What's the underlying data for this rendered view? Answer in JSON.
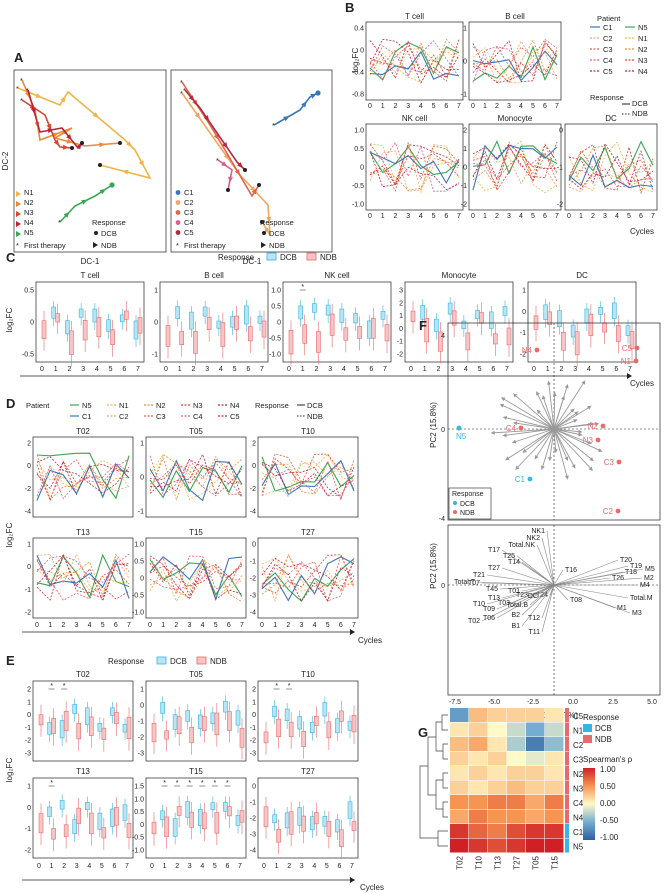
{
  "figure": {
    "panel_labels": [
      "A",
      "B",
      "C",
      "D",
      "E",
      "F",
      "G"
    ],
    "panelA": {
      "left_patients": [
        "N1",
        "N2",
        "N3",
        "N4",
        "N5"
      ],
      "right_patients": [
        "C1",
        "C2",
        "C3",
        "C4",
        "C5"
      ],
      "first_therapy": "First therapy",
      "response_title": "Response",
      "dcb": "DCB",
      "ndb": "NDB",
      "xlabel": "DC-1",
      "ylabel": "DC-2"
    },
    "panelB": {
      "titles": [
        "T cell",
        "B cell",
        "NK cell",
        "Monocyte",
        "DC"
      ],
      "ylabel": "log₂FC",
      "xlabel": "Cycles",
      "legend_title": "Patient",
      "legend_col1": [
        "C1",
        "C2",
        "C3",
        "C4",
        "C5"
      ],
      "legend_col2": [
        "N5",
        "N1",
        "N2",
        "N3",
        "N4"
      ],
      "response_title": "Response",
      "dcb": "DCB",
      "ndb": "NDB",
      "xticks": [
        "0",
        "1",
        "2",
        "3",
        "4",
        "5",
        "6",
        "7"
      ],
      "yticks_t": [
        "0.4",
        "0",
        "-0.4",
        "-0.8"
      ],
      "yticks_b": [
        "1",
        "0",
        "-1"
      ],
      "yticks_nk": [
        "1.0",
        "0.5",
        "0",
        "-0.5",
        "-1.0"
      ],
      "yticks_mono": [
        "2",
        "1",
        "0",
        "-1",
        "-2"
      ],
      "yticks_dc": [
        "0",
        "-1",
        "-2"
      ]
    },
    "panelC": {
      "response_title": "Response",
      "dcb": "DCB",
      "ndb": "NDB",
      "titles": [
        "T cell",
        "B cell",
        "NK cell",
        "Monocyte",
        "DC"
      ],
      "ylabel": "log₂FC",
      "xlabel": "Cycles",
      "xticks": [
        "0",
        "1",
        "2",
        "3",
        "4",
        "5",
        "6",
        "7"
      ],
      "yticks_t": [
        "0.5",
        "0",
        "-0.5"
      ],
      "yticks_b": [
        "1",
        "0",
        "-1"
      ],
      "yticks_nk": [
        "1.0",
        "0.5",
        "0",
        "-0.5",
        "-1.0"
      ],
      "yticks_mono": [
        "3",
        "2",
        "1",
        "0",
        "-1",
        "-2"
      ],
      "yticks_dc": [
        "1",
        "0",
        "-1",
        "-2"
      ],
      "sig": "*"
    },
    "panelD": {
      "patient_title": "Patient",
      "row1": [
        "N5",
        "N1",
        "N2",
        "N3",
        "N4"
      ],
      "row2": [
        "C1",
        "C2",
        "C3",
        "C4",
        "C5"
      ],
      "response_title": "Response",
      "dcb": "DCB",
      "ndb": "NDB",
      "titles": [
        "T02",
        "T05",
        "T10",
        "T13",
        "T15",
        "T27"
      ],
      "ylabel": "log₂FC",
      "xlabel": "Cycles",
      "xticks": [
        "0",
        "1",
        "2",
        "3",
        "4",
        "5",
        "6",
        "7"
      ],
      "yticks_t02": [
        "2",
        "0",
        "-2",
        "-4"
      ],
      "yticks_t05": [
        "1",
        "0",
        "-1"
      ],
      "yticks_t10": [
        "2",
        "0",
        "-2",
        "-4"
      ],
      "yticks_t13": [
        "1",
        "0",
        "-1",
        "-2"
      ],
      "yticks_t15": [
        "1.0",
        "0.5",
        "0",
        "-0.5",
        "-1.0"
      ],
      "yticks_t27": [
        "0",
        "-1",
        "-2",
        "-3",
        "-4"
      ]
    },
    "panelE": {
      "response_title": "Response",
      "dcb": "DCB",
      "ndb": "NDB",
      "titles": [
        "T02",
        "T05",
        "T10",
        "T13",
        "T15",
        "T27"
      ],
      "ylabel": "log₂FC",
      "xlabel": "Cycles",
      "xticks": [
        "0",
        "1",
        "2",
        "3",
        "4",
        "5",
        "6",
        "7"
      ],
      "yticks_t02": [
        "2",
        "1",
        "0",
        "-1",
        "-2",
        "-3"
      ],
      "yticks_t05": [
        "1",
        "0",
        "-1",
        "-2",
        "-3"
      ],
      "yticks_t10": [
        "2",
        "1",
        "0",
        "-1",
        "-2",
        "-3"
      ],
      "yticks_t13": [
        "1",
        "0",
        "-1",
        "-2"
      ],
      "yticks_t15": [
        "1.5",
        "1.0",
        "0.5",
        "0",
        "-0.5",
        "-1.0"
      ],
      "yticks_t27": [
        "0",
        "-1",
        "-2",
        "-3",
        "-4"
      ],
      "sig": "*"
    },
    "panelF": {
      "points": [
        {
          "label": "N4",
          "group": "NDB"
        },
        {
          "label": "C5",
          "group": "NDB"
        },
        {
          "label": "N1",
          "group": "NDB"
        },
        {
          "label": "N5",
          "group": "DCB"
        },
        {
          "label": "C4",
          "group": "NDB"
        },
        {
          "label": "N2",
          "group": "NDB"
        },
        {
          "label": "N3",
          "group": "NDB"
        },
        {
          "label": "C3",
          "group": "NDB"
        },
        {
          "label": "C1",
          "group": "DCB"
        },
        {
          "label": "C2",
          "group": "NDB"
        }
      ],
      "ylabel": "PC2 (15.8%)",
      "xlabel": "PC1 (38.7%)",
      "response_title": "Response",
      "dcb": "DCB",
      "ndb": "NDB",
      "yticks_top": [
        "4",
        "0",
        "-4"
      ],
      "yticks_bottom": [
        "0"
      ],
      "xticks": [
        "-7.5",
        "-5.0",
        "-2.5",
        "0.0",
        "2.5",
        "5.0"
      ],
      "loadings": [
        "NK1",
        "NK2",
        "Total.NK",
        "T17",
        "T25",
        "T14",
        "T27",
        "T16",
        "T21",
        "T07",
        "T45",
        "T01",
        "T23",
        "T24",
        "T13",
        "T03",
        "T08",
        "T10",
        "T09",
        "T02",
        "T06",
        "B1",
        "B2",
        "T12",
        "T11",
        "T20",
        "T19",
        "T18",
        "T26",
        "M5",
        "M2",
        "M4",
        "Total.M",
        "M1",
        "M3",
        "DC",
        "Total.T",
        "Total.B"
      ]
    },
    "panelG": {
      "rows": [
        "C5",
        "N1",
        "C2",
        "C3",
        "N2",
        "N3",
        "C4",
        "N4",
        "C1",
        "N5"
      ],
      "cols": [
        "T02",
        "T10",
        "T13",
        "T27",
        "T05",
        "T15"
      ],
      "values": [
        [
          -0.6,
          0.3,
          0.2,
          0.2,
          0.2,
          0.1
        ],
        [
          0.1,
          0.2,
          0.0,
          -0.2,
          -0.5,
          -0.2
        ],
        [
          0.3,
          0.4,
          0.1,
          -0.3,
          -0.8,
          -0.4
        ],
        [
          0.2,
          0.1,
          0.2,
          0.0,
          -0.1,
          0.1
        ],
        [
          0.1,
          0.2,
          0.1,
          0.2,
          0.2,
          0.1
        ],
        [
          0.2,
          0.1,
          0.2,
          0.3,
          0.2,
          0.2
        ],
        [
          0.5,
          0.5,
          0.6,
          0.6,
          0.4,
          0.6
        ],
        [
          0.4,
          0.6,
          0.5,
          0.5,
          0.4,
          0.5
        ],
        [
          0.9,
          0.7,
          0.6,
          0.8,
          0.9,
          0.9
        ],
        [
          1.0,
          0.9,
          0.8,
          0.9,
          1.0,
          1.0
        ]
      ],
      "row_groups": [
        "NDB",
        "NDB",
        "NDB",
        "NDB",
        "NDB",
        "NDB",
        "NDB",
        "NDB",
        "DCB",
        "DCB"
      ],
      "response_title": "Response",
      "dcb": "DCB",
      "ndb": "NDB",
      "scale_title": "Spearman's ρ",
      "scale_ticks": [
        "1.00",
        "0.50",
        "0.00",
        "-0.50",
        "-1.00"
      ]
    },
    "colors": {
      "dcb": "#3ab4e0",
      "ndb": "#e86a6a",
      "N5": "#3aa655",
      "N1": "#f0b547",
      "N2": "#e88a3a",
      "N3": "#d9452d",
      "N4": "#c0223a",
      "C1": "#3976b8",
      "C2": "#f0a560",
      "C3": "#e0634a",
      "C4": "#de5d8a",
      "C5": "#b52a3a"
    }
  }
}
